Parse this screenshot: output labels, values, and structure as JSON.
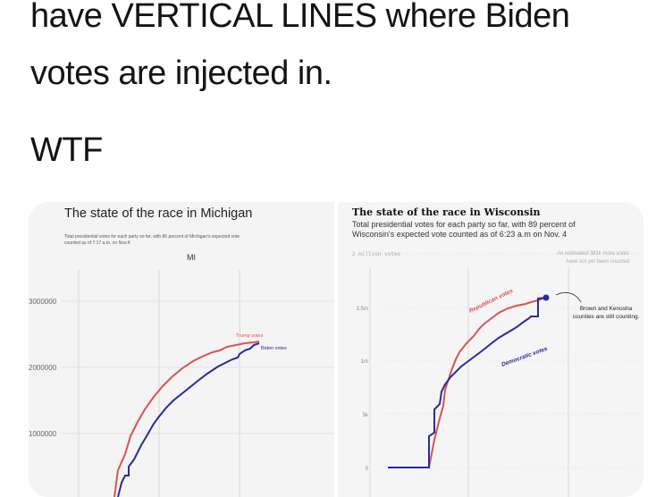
{
  "tweet": {
    "line1": "have VERTICAL LINES where Biden",
    "line2": "votes are injected in.",
    "line3": "WTF"
  },
  "media": {
    "michigan": {
      "title": "The state of the race in Michigan",
      "subtitle_line1": "Total presidential votes for each party so far, with 86 percent of Michigan's expected vote",
      "subtitle_line2": "counted as of 7:17 a.m. on Nov.4",
      "state_label": "MI",
      "y_labels": [
        "3000000",
        "2000000",
        "1000000"
      ],
      "trump_label": "Trump votes",
      "biden_label": "Biden votes",
      "trump_color": "#d9534f",
      "biden_color": "#2a2aa0"
    },
    "wisconsin": {
      "title": "The state of the race in Wisconsin",
      "subtitle_line1": "Total presidential votes for each party so far, with 89 percent of",
      "subtitle_line2": "Wisconsin's expected vote counted as of 6:23 a.m on Nov. 4",
      "top_left": "2 million votes",
      "note_line1": "An estimated 381k more votes",
      "note_line2": "have not yet been counted",
      "y_labels": [
        "1.5m",
        "1m",
        "5k",
        "0"
      ],
      "republican_label": "Republican votes",
      "democratic_label": "Democratic votes",
      "annotation_line1": "Brown and Kenosha",
      "annotation_line2": "counties are still counting.",
      "rep_color": "#d9534f",
      "dem_color": "#2a2aa0"
    }
  }
}
